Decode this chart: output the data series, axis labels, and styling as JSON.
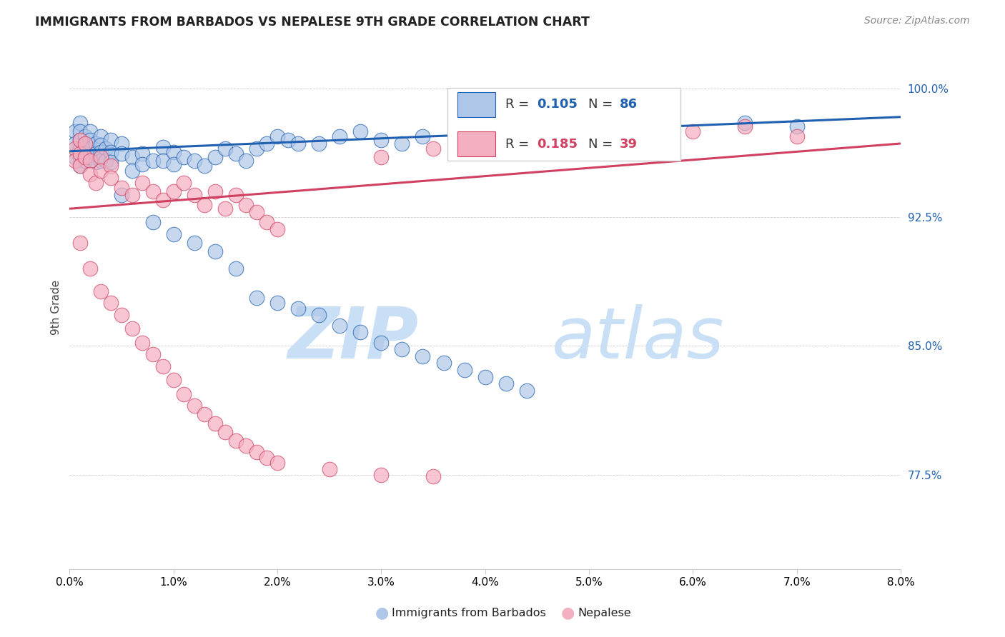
{
  "title": "IMMIGRANTS FROM BARBADOS VS NEPALESE 9TH GRADE CORRELATION CHART",
  "source": "Source: ZipAtlas.com",
  "ylabel": "9th Grade",
  "ytick_labels": [
    "100.0%",
    "92.5%",
    "85.0%",
    "77.5%"
  ],
  "ytick_values": [
    1.0,
    0.925,
    0.85,
    0.775
  ],
  "xtick_labels": [
    "0.0%",
    "1.0%",
    "2.0%",
    "3.0%",
    "4.0%",
    "5.0%",
    "6.0%",
    "7.0%",
    "8.0%"
  ],
  "xtick_values": [
    0.0,
    0.01,
    0.02,
    0.03,
    0.04,
    0.05,
    0.06,
    0.07,
    0.08
  ],
  "xmin": 0.0,
  "xmax": 0.08,
  "ymin": 0.72,
  "ymax": 1.025,
  "color_blue": "#aec6e8",
  "color_pink": "#f4afc0",
  "line_blue": "#2060b0",
  "line_pink": "#d04060",
  "watermark_text": "ZIP",
  "watermark_text2": "atlas",
  "watermark_color": "#daeaf8",
  "blue_line_x": [
    0.0,
    0.08
  ],
  "blue_line_y": [
    0.9635,
    0.9835
  ],
  "pink_line_x": [
    0.0,
    0.08
  ],
  "pink_line_y": [
    0.93,
    0.968
  ],
  "barbados_x": [
    0.0005,
    0.0005,
    0.0005,
    0.001,
    0.001,
    0.001,
    0.001,
    0.001,
    0.001,
    0.0015,
    0.0015,
    0.0015,
    0.0015,
    0.002,
    0.002,
    0.002,
    0.002,
    0.0025,
    0.0025,
    0.0025,
    0.003,
    0.003,
    0.003,
    0.003,
    0.0035,
    0.0035,
    0.004,
    0.004,
    0.004,
    0.005,
    0.005,
    0.006,
    0.006,
    0.007,
    0.007,
    0.008,
    0.009,
    0.009,
    0.01,
    0.01,
    0.011,
    0.012,
    0.013,
    0.014,
    0.015,
    0.016,
    0.017,
    0.018,
    0.019,
    0.02,
    0.021,
    0.022,
    0.024,
    0.026,
    0.028,
    0.03,
    0.032,
    0.034,
    0.04,
    0.042,
    0.045,
    0.048,
    0.065,
    0.07
  ],
  "barbados_y": [
    0.975,
    0.968,
    0.96,
    0.98,
    0.975,
    0.97,
    0.965,
    0.96,
    0.955,
    0.972,
    0.967,
    0.962,
    0.958,
    0.975,
    0.97,
    0.965,
    0.96,
    0.968,
    0.962,
    0.957,
    0.972,
    0.967,
    0.963,
    0.958,
    0.965,
    0.958,
    0.97,
    0.963,
    0.957,
    0.968,
    0.962,
    0.96,
    0.952,
    0.962,
    0.956,
    0.958,
    0.966,
    0.958,
    0.963,
    0.956,
    0.96,
    0.958,
    0.955,
    0.96,
    0.965,
    0.962,
    0.958,
    0.965,
    0.968,
    0.972,
    0.97,
    0.968,
    0.968,
    0.972,
    0.975,
    0.97,
    0.968,
    0.972,
    0.975,
    0.972,
    0.975,
    0.978,
    0.98,
    0.978
  ],
  "barbados_y_low": [
    0.938,
    0.922,
    0.915,
    0.91,
    0.905,
    0.895,
    0.878,
    0.875,
    0.872,
    0.868,
    0.862,
    0.858,
    0.852,
    0.848,
    0.844,
    0.84,
    0.836,
    0.832,
    0.828,
    0.824
  ],
  "barbados_x_low": [
    0.005,
    0.008,
    0.01,
    0.012,
    0.014,
    0.016,
    0.018,
    0.02,
    0.022,
    0.024,
    0.026,
    0.028,
    0.03,
    0.032,
    0.034,
    0.036,
    0.038,
    0.04,
    0.042,
    0.044
  ],
  "nepalese_x": [
    0.0005,
    0.0005,
    0.001,
    0.001,
    0.001,
    0.0015,
    0.0015,
    0.002,
    0.002,
    0.0025,
    0.003,
    0.003,
    0.004,
    0.004,
    0.005,
    0.006,
    0.007,
    0.008,
    0.009,
    0.01,
    0.011,
    0.012,
    0.013,
    0.014,
    0.015,
    0.016,
    0.017,
    0.018,
    0.019,
    0.02,
    0.03,
    0.035,
    0.05,
    0.06,
    0.065,
    0.07
  ],
  "nepalese_y": [
    0.965,
    0.958,
    0.97,
    0.962,
    0.955,
    0.968,
    0.96,
    0.958,
    0.95,
    0.945,
    0.96,
    0.952,
    0.955,
    0.948,
    0.942,
    0.938,
    0.945,
    0.94,
    0.935,
    0.94,
    0.945,
    0.938,
    0.932,
    0.94,
    0.93,
    0.938,
    0.932,
    0.928,
    0.922,
    0.918,
    0.96,
    0.965,
    0.97,
    0.975,
    0.978,
    0.972
  ],
  "nepalese_x_low": [
    0.001,
    0.002,
    0.003,
    0.004,
    0.005,
    0.006,
    0.007,
    0.008,
    0.009,
    0.01,
    0.011,
    0.012,
    0.013,
    0.014,
    0.015,
    0.016,
    0.017,
    0.018,
    0.019,
    0.02,
    0.025,
    0.03,
    0.035
  ],
  "nepalese_y_low": [
    0.91,
    0.895,
    0.882,
    0.875,
    0.868,
    0.86,
    0.852,
    0.845,
    0.838,
    0.83,
    0.822,
    0.815,
    0.81,
    0.805,
    0.8,
    0.795,
    0.792,
    0.788,
    0.785,
    0.782,
    0.778,
    0.775,
    0.774
  ]
}
